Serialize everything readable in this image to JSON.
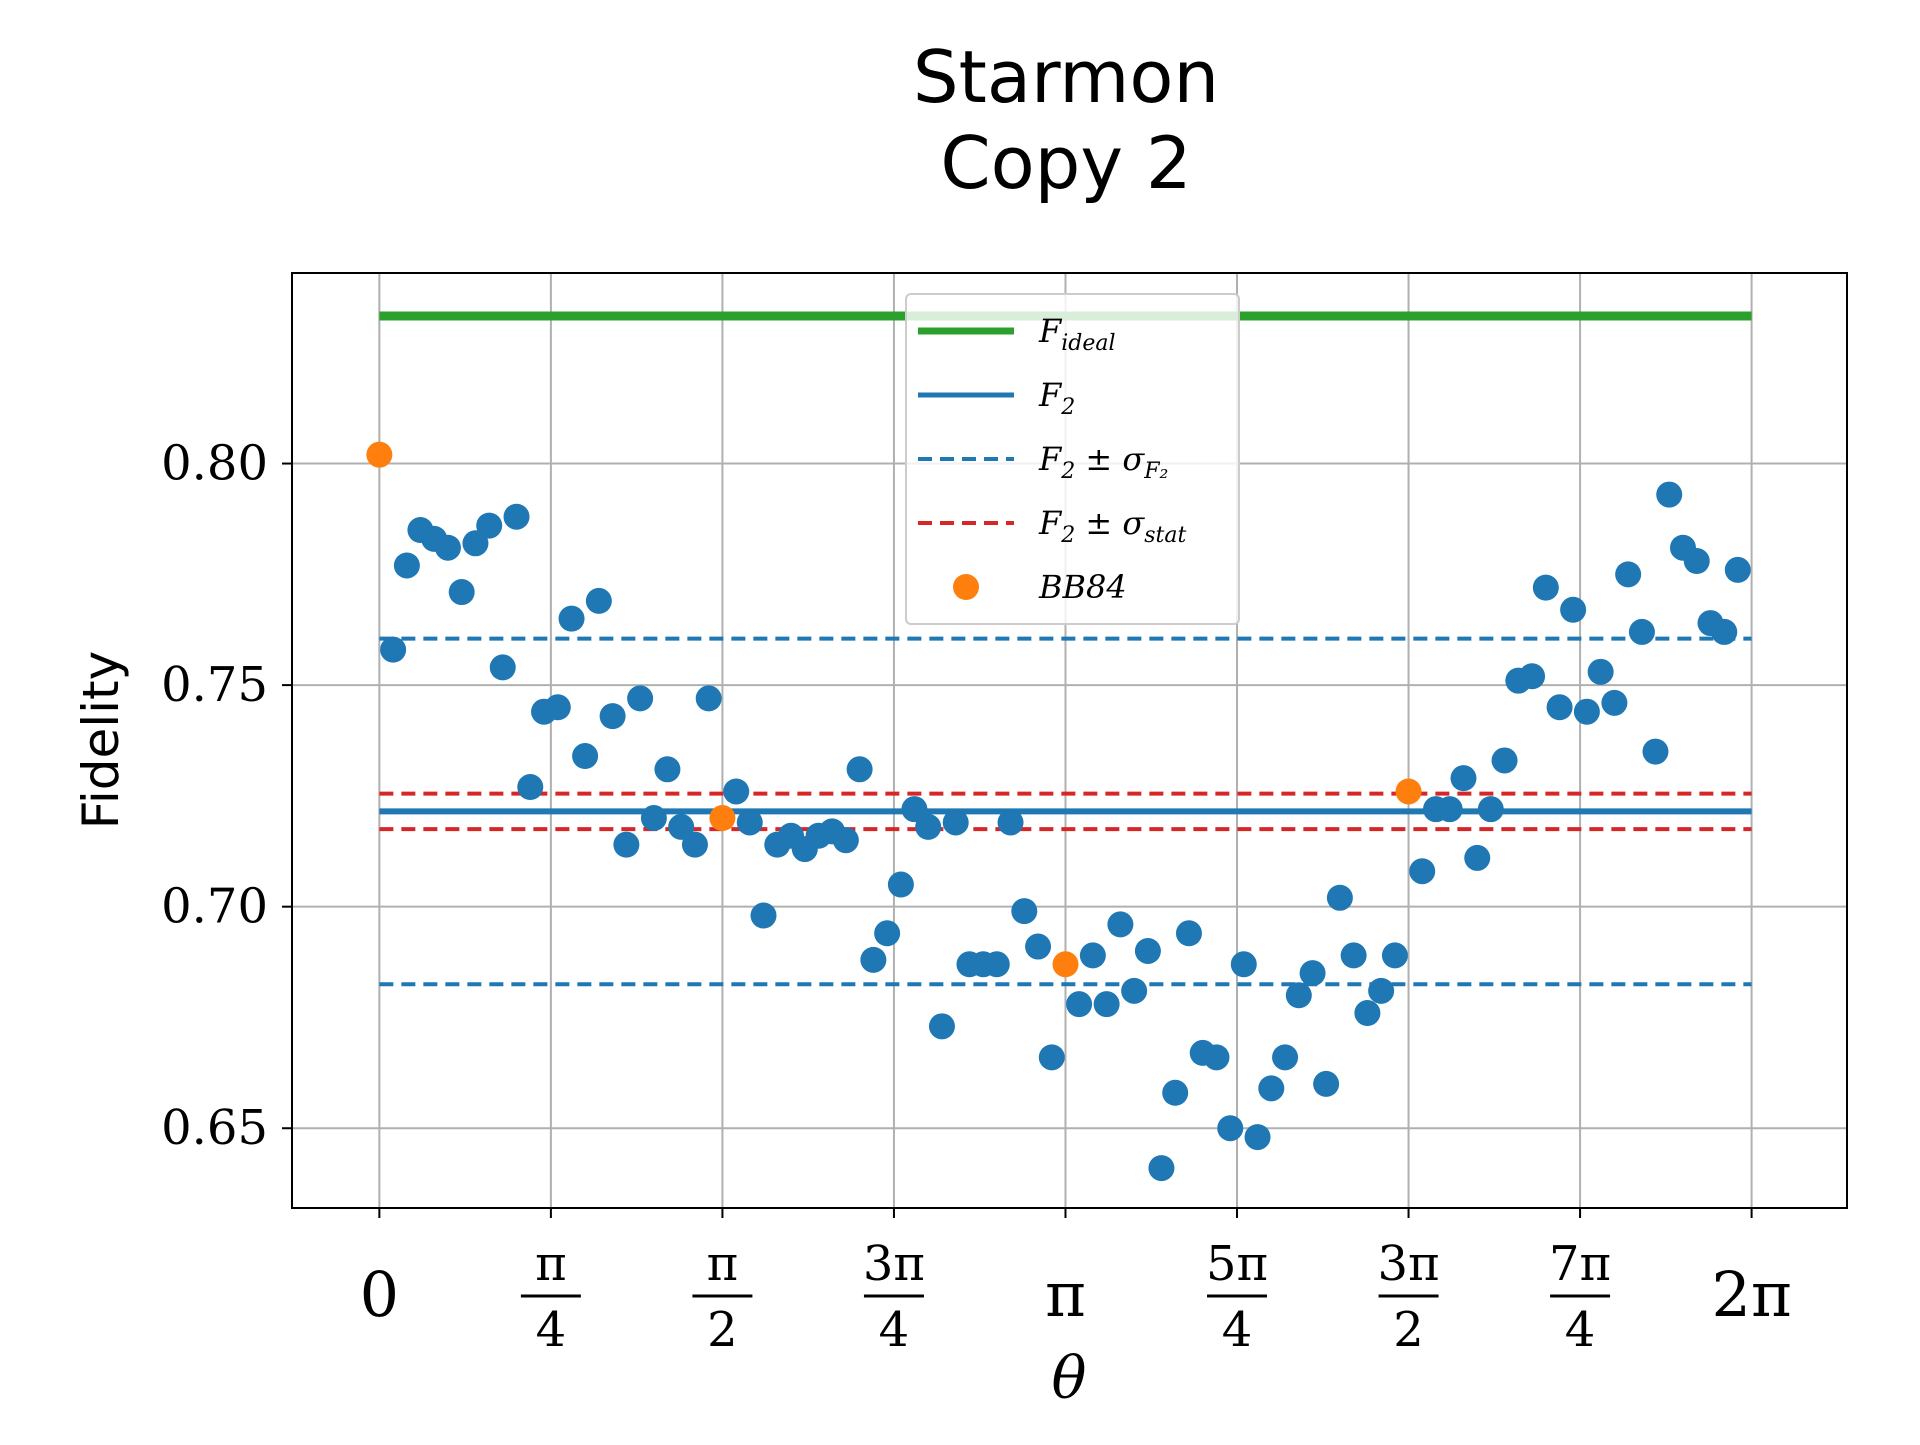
{
  "chart_data": {
    "type": "scatter",
    "title_lines": [
      "Starmon",
      "Copy 2"
    ],
    "xlabel": "θ",
    "ylabel": "Fidelity",
    "xlim": [
      -0.4,
      6.72
    ],
    "ylim": [
      0.632,
      0.843
    ],
    "grid": true,
    "legend_placement": "top-center",
    "yticks": [
      {
        "value": 0.65,
        "label": "0.65"
      },
      {
        "value": 0.7,
        "label": "0.70"
      },
      {
        "value": 0.75,
        "label": "0.75"
      },
      {
        "value": 0.8,
        "label": "0.80"
      }
    ],
    "xticks": [
      {
        "value": 0.0,
        "num": "0",
        "den": ""
      },
      {
        "value": 0.7854,
        "num": "π",
        "den": "4"
      },
      {
        "value": 1.5708,
        "num": "π",
        "den": "2"
      },
      {
        "value": 2.3562,
        "num": "3π",
        "den": "4"
      },
      {
        "value": 3.1416,
        "num": "π",
        "den": ""
      },
      {
        "value": 3.927,
        "num": "5π",
        "den": "4"
      },
      {
        "value": 4.7124,
        "num": "3π",
        "den": "2"
      },
      {
        "value": 5.4978,
        "num": "7π",
        "den": "4"
      },
      {
        "value": 6.2832,
        "num": "2π",
        "den": ""
      }
    ],
    "lines": [
      {
        "name": "F_ideal",
        "y": 0.8333,
        "color": "#2ca02c",
        "style": "solid",
        "x_range": [
          0,
          6.2832
        ]
      },
      {
        "name": "F_2",
        "y": 0.7215,
        "color": "#1f77b4",
        "style": "solid",
        "x_range": [
          0,
          6.2832
        ]
      },
      {
        "name": "F_2 ± σ_F2 (upper)",
        "y": 0.7605,
        "color": "#1f77b4",
        "style": "dashed",
        "x_range": [
          0,
          6.2832
        ]
      },
      {
        "name": "F_2 ± σ_F2 (lower)",
        "y": 0.6825,
        "color": "#1f77b4",
        "style": "dashed",
        "x_range": [
          0,
          6.2832
        ]
      },
      {
        "name": "F_2 ± σ_stat (upper)",
        "y": 0.7255,
        "color": "#d62728",
        "style": "dashed",
        "x_range": [
          0,
          6.2832
        ]
      },
      {
        "name": "F_2 ± σ_stat (lower)",
        "y": 0.7175,
        "color": "#d62728",
        "style": "dashed",
        "x_range": [
          0,
          6.2832
        ]
      }
    ],
    "series": [
      {
        "name": "data",
        "color": "#1f77b4",
        "points": [
          [
            0.063,
            0.758
          ],
          [
            0.126,
            0.777
          ],
          [
            0.188,
            0.785
          ],
          [
            0.251,
            0.783
          ],
          [
            0.314,
            0.781
          ],
          [
            0.377,
            0.771
          ],
          [
            0.44,
            0.782
          ],
          [
            0.503,
            0.786
          ],
          [
            0.565,
            0.754
          ],
          [
            0.628,
            0.788
          ],
          [
            0.691,
            0.727
          ],
          [
            0.754,
            0.744
          ],
          [
            0.817,
            0.745
          ],
          [
            0.88,
            0.765
          ],
          [
            0.942,
            0.734
          ],
          [
            1.005,
            0.769
          ],
          [
            1.068,
            0.743
          ],
          [
            1.131,
            0.714
          ],
          [
            1.194,
            0.747
          ],
          [
            1.257,
            0.72
          ],
          [
            1.319,
            0.731
          ],
          [
            1.382,
            0.718
          ],
          [
            1.445,
            0.714
          ],
          [
            1.508,
            0.747
          ],
          [
            1.634,
            0.726
          ],
          [
            1.696,
            0.719
          ],
          [
            1.759,
            0.698
          ],
          [
            1.822,
            0.714
          ],
          [
            1.885,
            0.716
          ],
          [
            1.948,
            0.713
          ],
          [
            2.011,
            0.716
          ],
          [
            2.073,
            0.717
          ],
          [
            2.136,
            0.715
          ],
          [
            2.199,
            0.731
          ],
          [
            2.262,
            0.688
          ],
          [
            2.325,
            0.694
          ],
          [
            2.388,
            0.705
          ],
          [
            2.45,
            0.722
          ],
          [
            2.513,
            0.718
          ],
          [
            2.576,
            0.673
          ],
          [
            2.639,
            0.719
          ],
          [
            2.702,
            0.687
          ],
          [
            2.765,
            0.687
          ],
          [
            2.827,
            0.687
          ],
          [
            2.89,
            0.719
          ],
          [
            2.953,
            0.699
          ],
          [
            3.016,
            0.691
          ],
          [
            3.079,
            0.666
          ],
          [
            3.204,
            0.678
          ],
          [
            3.267,
            0.689
          ],
          [
            3.33,
            0.678
          ],
          [
            3.393,
            0.696
          ],
          [
            3.456,
            0.681
          ],
          [
            3.519,
            0.69
          ],
          [
            3.581,
            0.641
          ],
          [
            3.644,
            0.658
          ],
          [
            3.707,
            0.694
          ],
          [
            3.77,
            0.667
          ],
          [
            3.833,
            0.666
          ],
          [
            3.896,
            0.65
          ],
          [
            3.958,
            0.687
          ],
          [
            4.021,
            0.648
          ],
          [
            4.084,
            0.659
          ],
          [
            4.147,
            0.666
          ],
          [
            4.21,
            0.68
          ],
          [
            4.273,
            0.685
          ],
          [
            4.335,
            0.66
          ],
          [
            4.398,
            0.702
          ],
          [
            4.461,
            0.689
          ],
          [
            4.524,
            0.676
          ],
          [
            4.587,
            0.681
          ],
          [
            4.65,
            0.689
          ],
          [
            4.775,
            0.708
          ],
          [
            4.838,
            0.722
          ],
          [
            4.901,
            0.722
          ],
          [
            4.964,
            0.729
          ],
          [
            5.027,
            0.711
          ],
          [
            5.089,
            0.722
          ],
          [
            5.152,
            0.733
          ],
          [
            5.215,
            0.751
          ],
          [
            5.278,
            0.752
          ],
          [
            5.341,
            0.772
          ],
          [
            5.404,
            0.745
          ],
          [
            5.466,
            0.767
          ],
          [
            5.529,
            0.744
          ],
          [
            5.592,
            0.753
          ],
          [
            5.655,
            0.746
          ],
          [
            5.718,
            0.775
          ],
          [
            5.781,
            0.762
          ],
          [
            5.843,
            0.735
          ],
          [
            5.906,
            0.793
          ],
          [
            5.969,
            0.781
          ],
          [
            6.032,
            0.778
          ],
          [
            6.095,
            0.764
          ],
          [
            6.158,
            0.762
          ],
          [
            6.22,
            0.776
          ]
        ]
      },
      {
        "name": "BB84",
        "color": "#ff7f0e",
        "points": [
          [
            0.0,
            0.802
          ],
          [
            1.5708,
            0.72
          ],
          [
            3.1416,
            0.687
          ],
          [
            4.7124,
            0.726
          ]
        ]
      }
    ],
    "legend": [
      {
        "kind": "line",
        "color": "#2ca02c",
        "style": "solid",
        "width": 7,
        "main": "F",
        "sub": "ideal",
        "rest": ""
      },
      {
        "kind": "line",
        "color": "#1f77b4",
        "style": "solid",
        "width": 5,
        "main": "F",
        "sub": "2",
        "rest": ""
      },
      {
        "kind": "line",
        "color": "#1f77b4",
        "style": "dashed",
        "width": 4,
        "main": "F",
        "sub": "2",
        "rest": " ± σ",
        "sub2": "F₂"
      },
      {
        "kind": "line",
        "color": "#d62728",
        "style": "dashed",
        "width": 4,
        "main": "F",
        "sub": "2",
        "rest": " ± σ",
        "sub2": "stat"
      },
      {
        "kind": "marker",
        "color": "#ff7f0e",
        "main": "BB84",
        "sub": "",
        "rest": ""
      }
    ]
  }
}
